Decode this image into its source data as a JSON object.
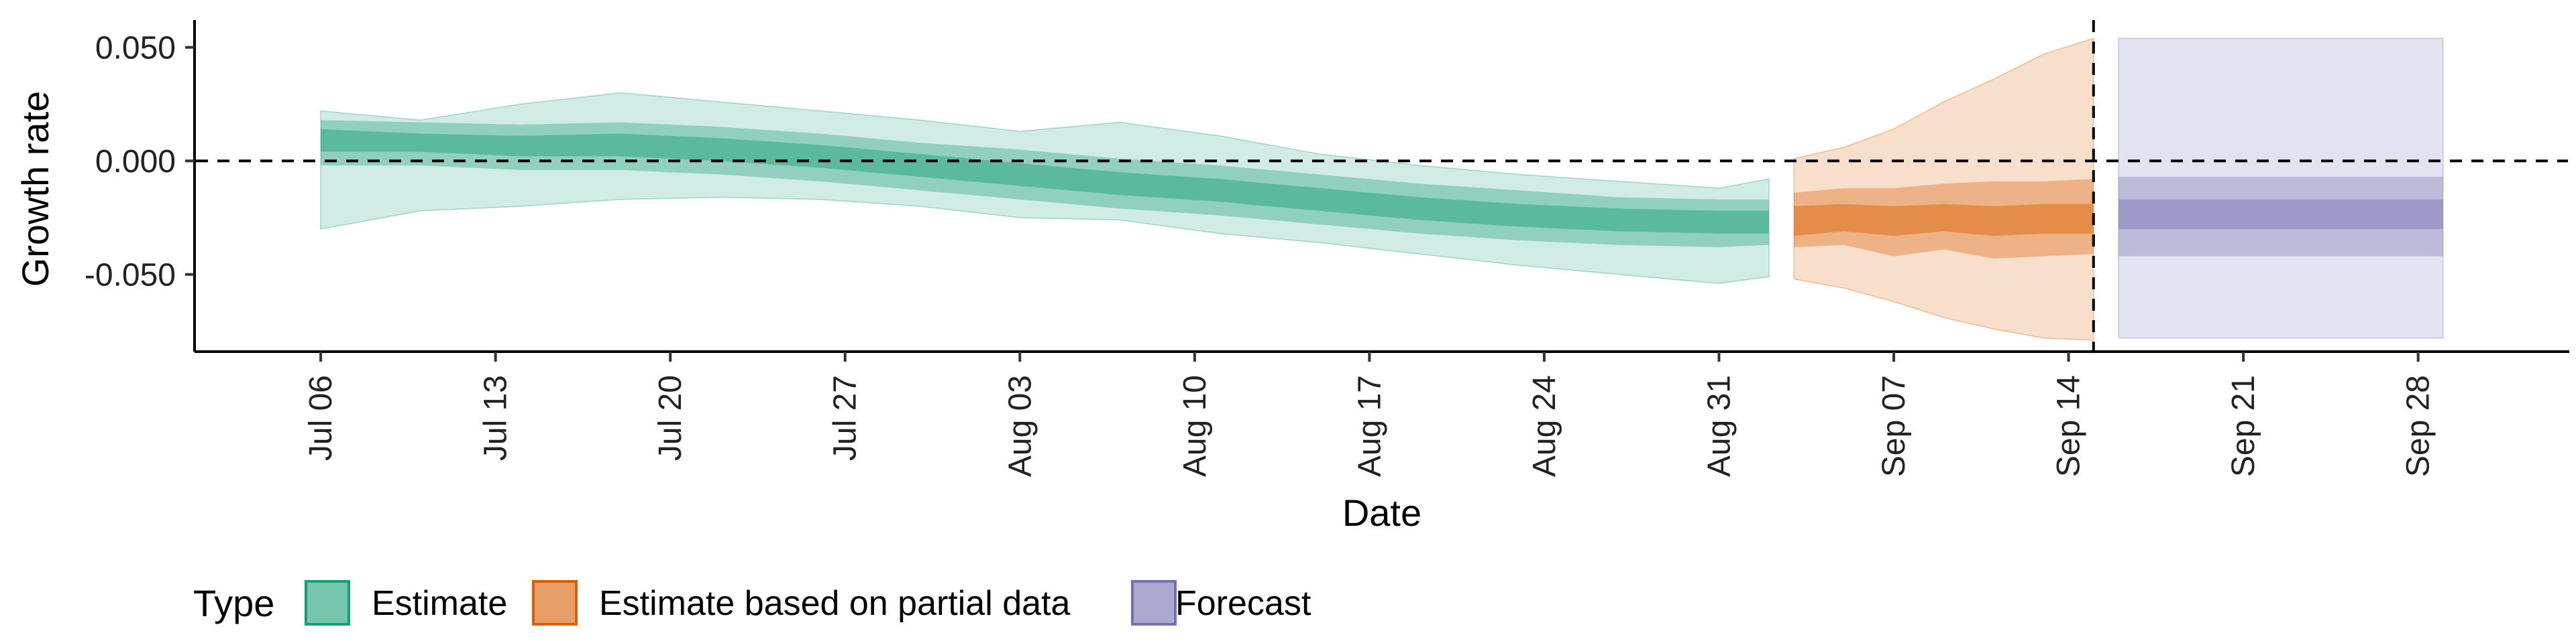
{
  "chart_data": {
    "type": "area",
    "title": "",
    "xlabel": "Date",
    "ylabel": "Growth rate",
    "x_start": "Jul 06",
    "xlim_days_label": [
      "Jul 01",
      "Oct 04"
    ],
    "x_ticks": [
      "Jul 06",
      "Jul 13",
      "Jul 20",
      "Jul 27",
      "Aug 03",
      "Aug 10",
      "Aug 17",
      "Aug 24",
      "Aug 31",
      "Sep 07",
      "Sep 14",
      "Sep 21",
      "Sep 28"
    ],
    "y_ticks": [
      "0.050",
      "0.000",
      "-0.050"
    ],
    "ylim": [
      -0.084,
      0.062
    ],
    "reference_lines": {
      "horizontal_y": 0.0,
      "vertical_date": "Sep 15"
    },
    "grid": false,
    "legend": {
      "title": "Type",
      "placement": "bottom-left",
      "entries": [
        {
          "label": "Estimate",
          "color": "#1b9e77"
        },
        {
          "label": "Estimate based on partial data",
          "color": "#d95f02"
        },
        {
          "label": "Forecast",
          "color": "#7570b3"
        }
      ]
    },
    "series": [
      {
        "name": "Estimate",
        "color": "#1b9e77",
        "dates": [
          "Jul 06",
          "Jul 10",
          "Jul 14",
          "Jul 18",
          "Jul 22",
          "Jul 26",
          "Jul 30",
          "Aug 03",
          "Aug 07",
          "Aug 11",
          "Aug 15",
          "Aug 19",
          "Aug 23",
          "Aug 27",
          "Aug 31",
          "Sep 02"
        ],
        "median": [
          0.009,
          0.008,
          0.007,
          0.007,
          0.005,
          0.002,
          -0.002,
          -0.006,
          -0.01,
          -0.013,
          -0.017,
          -0.021,
          -0.024,
          -0.026,
          -0.027,
          -0.027
        ],
        "inner": [
          [
            0.004,
            0.014
          ],
          [
            0.004,
            0.012
          ],
          [
            0.002,
            0.011
          ],
          [
            0.002,
            0.012
          ],
          [
            0.0,
            0.01
          ],
          [
            -0.003,
            0.007
          ],
          [
            -0.007,
            0.003
          ],
          [
            -0.011,
            -0.001
          ],
          [
            -0.015,
            -0.005
          ],
          [
            -0.018,
            -0.008
          ],
          [
            -0.022,
            -0.012
          ],
          [
            -0.026,
            -0.016
          ],
          [
            -0.029,
            -0.019
          ],
          [
            -0.031,
            -0.021
          ],
          [
            -0.032,
            -0.022
          ],
          [
            -0.032,
            -0.022
          ]
        ],
        "middle": [
          [
            -0.002,
            0.018
          ],
          [
            -0.002,
            0.017
          ],
          [
            -0.004,
            0.016
          ],
          [
            -0.004,
            0.017
          ],
          [
            -0.006,
            0.015
          ],
          [
            -0.009,
            0.012
          ],
          [
            -0.013,
            0.008
          ],
          [
            -0.017,
            0.005
          ],
          [
            -0.021,
            0.001
          ],
          [
            -0.024,
            -0.002
          ],
          [
            -0.028,
            -0.006
          ],
          [
            -0.032,
            -0.01
          ],
          [
            -0.035,
            -0.013
          ],
          [
            -0.037,
            -0.016
          ],
          [
            -0.038,
            -0.017
          ],
          [
            -0.037,
            -0.017
          ]
        ],
        "outer": [
          [
            -0.03,
            0.022
          ],
          [
            -0.022,
            0.018
          ],
          [
            -0.02,
            0.025
          ],
          [
            -0.017,
            0.03
          ],
          [
            -0.016,
            0.026
          ],
          [
            -0.017,
            0.022
          ],
          [
            -0.02,
            0.018
          ],
          [
            -0.025,
            0.013
          ],
          [
            -0.026,
            0.017
          ],
          [
            -0.032,
            0.011
          ],
          [
            -0.036,
            0.003
          ],
          [
            -0.041,
            -0.002
          ],
          [
            -0.046,
            -0.006
          ],
          [
            -0.05,
            -0.009
          ],
          [
            -0.054,
            -0.012
          ],
          [
            -0.051,
            -0.008
          ]
        ]
      },
      {
        "name": "Estimate based on partial data",
        "color": "#d95f02",
        "dates": [
          "Sep 03",
          "Sep 05",
          "Sep 07",
          "Sep 09",
          "Sep 11",
          "Sep 13",
          "Sep 15"
        ],
        "median": [
          -0.027,
          -0.025,
          -0.027,
          -0.025,
          -0.026,
          -0.025,
          -0.025
        ],
        "inner": [
          [
            -0.033,
            -0.02
          ],
          [
            -0.031,
            -0.019
          ],
          [
            -0.033,
            -0.02
          ],
          [
            -0.031,
            -0.019
          ],
          [
            -0.033,
            -0.02
          ],
          [
            -0.032,
            -0.019
          ],
          [
            -0.032,
            -0.019
          ]
        ],
        "middle": [
          [
            -0.038,
            -0.014
          ],
          [
            -0.037,
            -0.012
          ],
          [
            -0.042,
            -0.012
          ],
          [
            -0.039,
            -0.01
          ],
          [
            -0.043,
            -0.009
          ],
          [
            -0.042,
            -0.009
          ],
          [
            -0.041,
            -0.008
          ]
        ],
        "outer": [
          [
            -0.052,
            0.001
          ],
          [
            -0.056,
            0.006
          ],
          [
            -0.062,
            0.014
          ],
          [
            -0.069,
            0.026
          ],
          [
            -0.074,
            0.036
          ],
          [
            -0.078,
            0.047
          ],
          [
            -0.079,
            0.054
          ]
        ]
      },
      {
        "name": "Forecast",
        "color": "#7570b3",
        "dates": [
          "Sep 16",
          "Sep 29"
        ],
        "median": [
          -0.024,
          -0.024
        ],
        "inner": [
          [
            -0.03,
            -0.017
          ],
          [
            -0.03,
            -0.017
          ]
        ],
        "middle": [
          [
            -0.042,
            -0.007
          ],
          [
            -0.042,
            -0.007
          ]
        ],
        "outer": [
          [
            -0.078,
            0.054
          ],
          [
            -0.078,
            0.054
          ]
        ]
      }
    ]
  }
}
